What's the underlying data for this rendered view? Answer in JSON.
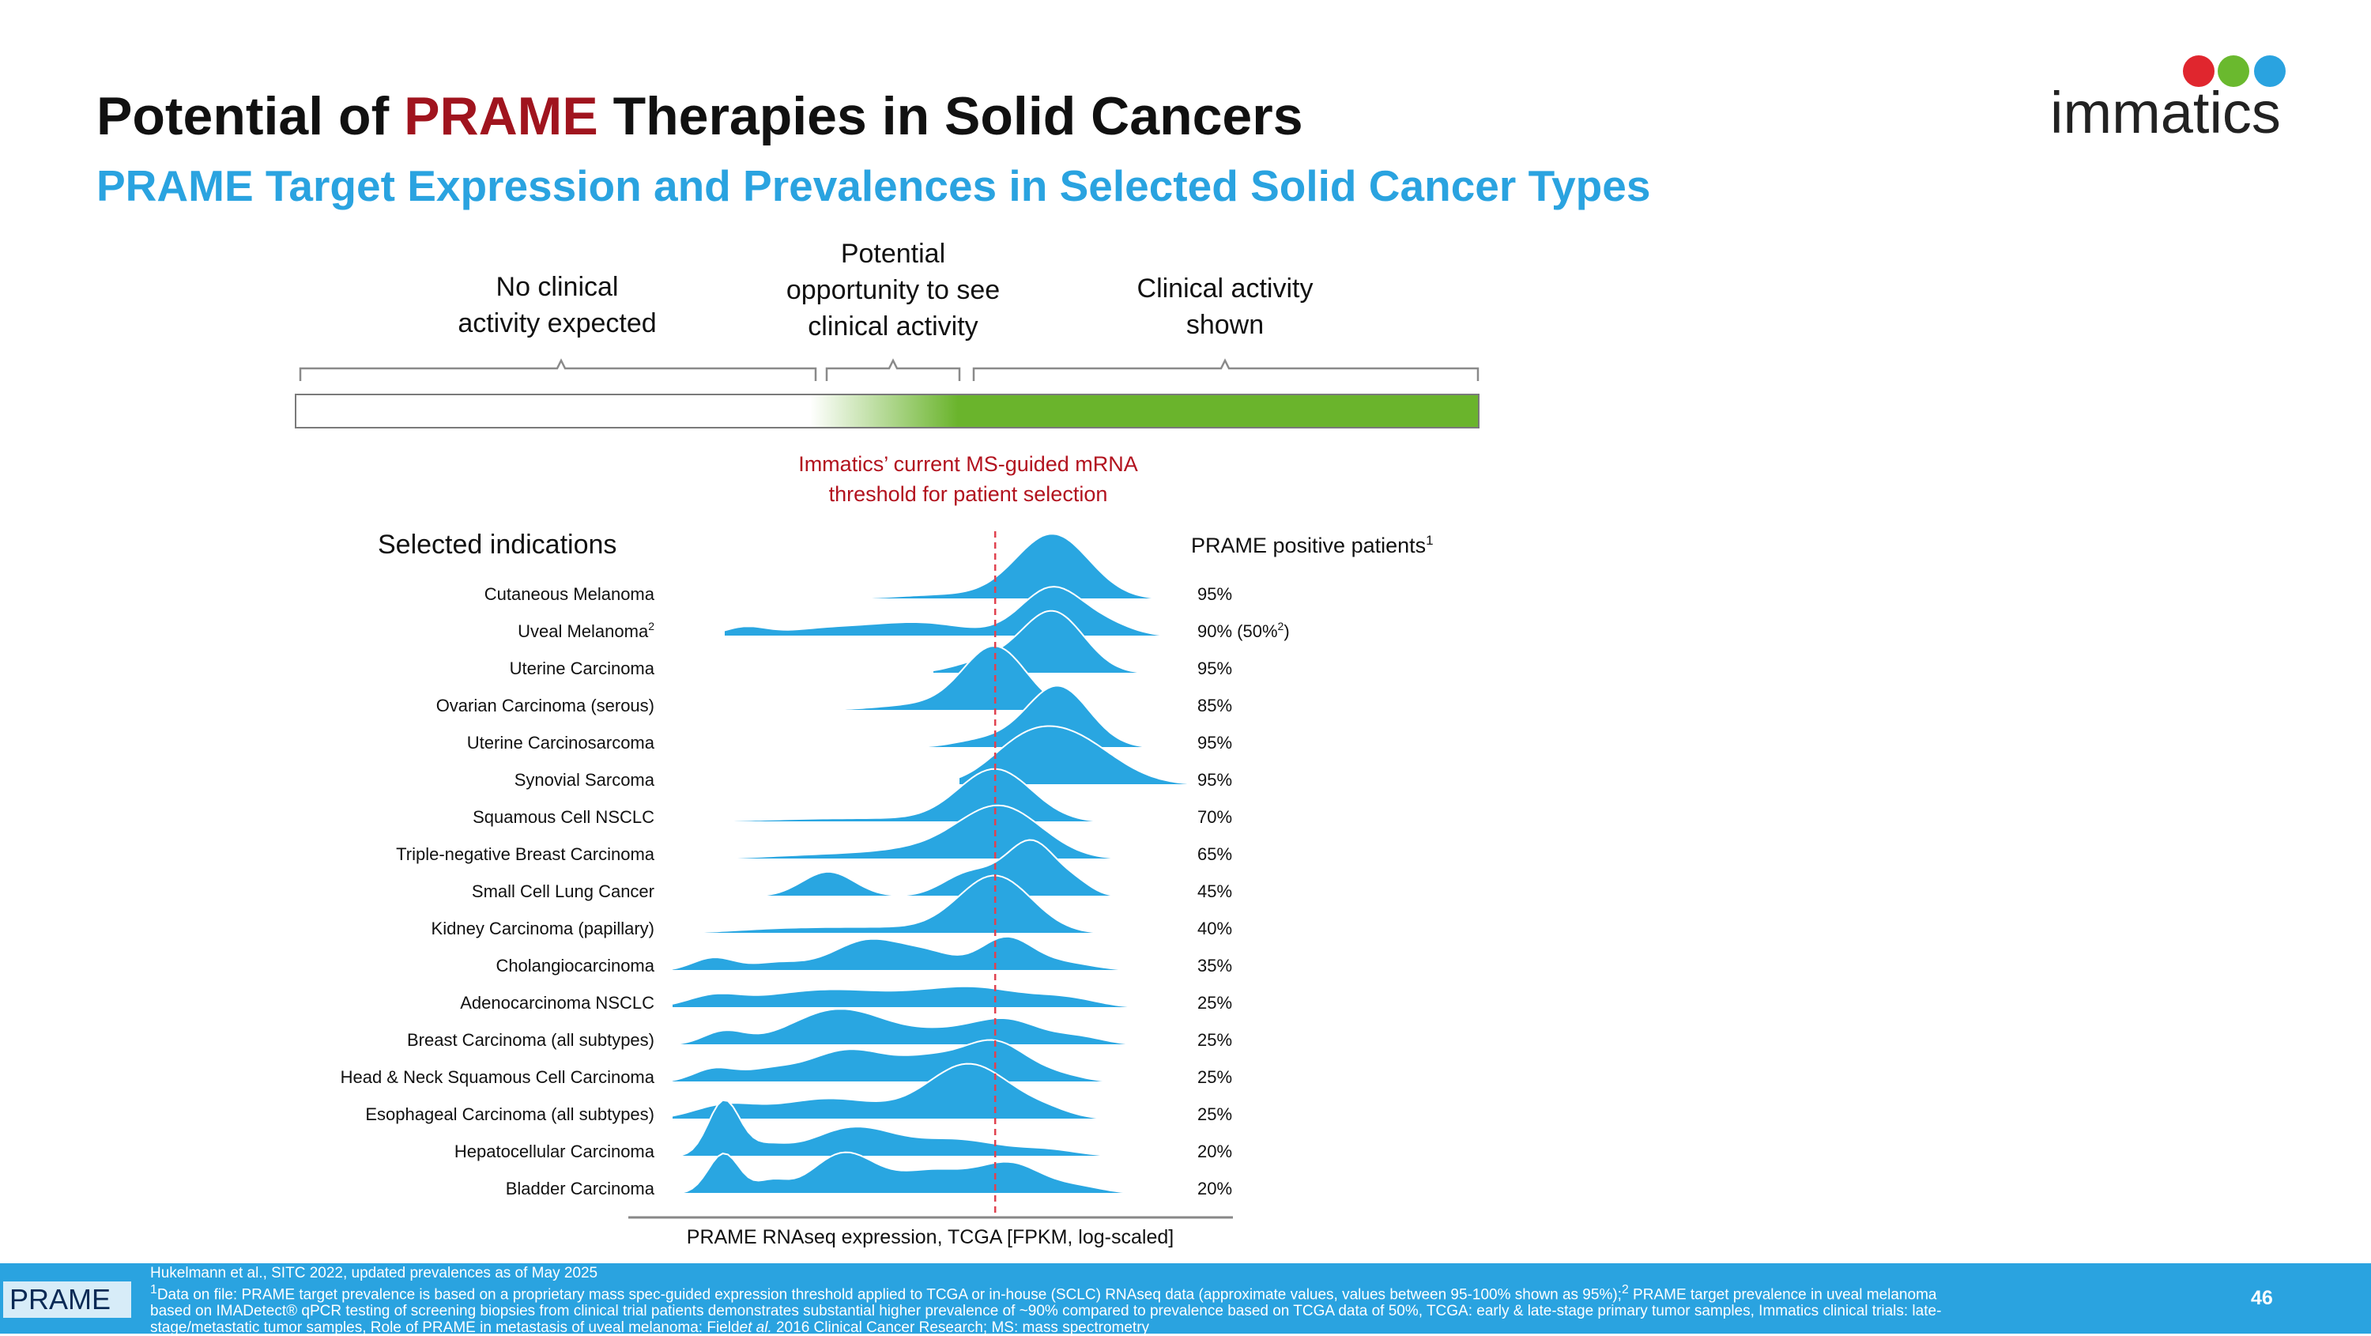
{
  "header": {
    "title_prefix": "Potential of ",
    "title_accent": "PRAME",
    "title_suffix": " Therapies in Solid Cancers",
    "subtitle": "PRAME Target Expression and Prevalences in Selected Solid Cancer Types",
    "logo_text": "immatics",
    "accent_color": "#a0141e",
    "subtitle_color": "#2aa3e0"
  },
  "zones": {
    "no_activity_line1": "No clinical",
    "no_activity_line2": "activity expected",
    "potential_line1": "Potential",
    "potential_line2": "opportunity to see",
    "potential_line3": "clinical activity",
    "shown_line1": "Clinical activity",
    "shown_line2": "shown"
  },
  "threshold_note": {
    "line1": "Immatics’ current MS-guided mRNA",
    "line2": "threshold for patient selection"
  },
  "chart_data": {
    "type": "ridgeline",
    "title": "PRAME Target Expression and Prevalences in Selected Solid Cancer Types",
    "xlabel": "PRAME RNAseq expression, TCGA [FPKM, log-scaled]",
    "ylabel": "Selected indications",
    "right_column_label": "PRAME positive patients",
    "right_column_sup": "1",
    "x_range": [
      0,
      100
    ],
    "threshold_x": 62,
    "series_color": "#29a6e1",
    "threshold_color": "#e0424f",
    "series": [
      {
        "name": "Cutaneous Melanoma",
        "sup": "",
        "positive": "95%",
        "start": 35,
        "end": 95,
        "bumps": [
          [
            53,
            10,
            0.07
          ],
          [
            73,
            7,
            1.0
          ]
        ]
      },
      {
        "name": "Uveal Melanoma",
        "sup": "2",
        "positive": "90% (50%",
        "positive_sup": "2",
        "positive_suffix": ")",
        "start": 10,
        "end": 95,
        "bumps": [
          [
            14,
            4,
            0.13
          ],
          [
            30,
            9,
            0.12
          ],
          [
            48,
            9,
            0.2
          ],
          [
            73,
            6,
            0.75
          ],
          [
            84,
            5,
            0.14
          ]
        ]
      },
      {
        "name": "Uterine Carcinoma",
        "sup": "",
        "positive": "95%",
        "start": 50,
        "end": 95,
        "bumps": [
          [
            60,
            6,
            0.18
          ],
          [
            73,
            6,
            0.95
          ]
        ]
      },
      {
        "name": "Ovarian Carcinoma (serous)",
        "sup": "",
        "positive": "85%",
        "start": 25,
        "end": 90,
        "bumps": [
          [
            50,
            10,
            0.1
          ],
          [
            62,
            6,
            0.95
          ]
        ]
      },
      {
        "name": "Uterine Carcinosarcoma",
        "sup": "",
        "positive": "95%",
        "start": 48,
        "end": 95,
        "bumps": [
          [
            60,
            6,
            0.12
          ],
          [
            74,
            6,
            0.95
          ]
        ]
      },
      {
        "name": "Synovial Sarcoma",
        "sup": "",
        "positive": "95%",
        "start": 55,
        "end": 100,
        "bumps": [
          [
            66,
            6,
            0.25
          ],
          [
            75,
            9,
            0.8
          ]
        ]
      },
      {
        "name": "Squamous Cell NSCLC",
        "sup": "",
        "positive": "70%",
        "start": 5,
        "end": 88,
        "bumps": [
          [
            36,
            18,
            0.06
          ],
          [
            62,
            7,
            0.8
          ]
        ]
      },
      {
        "name": "Triple-negative Breast Carcinoma",
        "sup": "",
        "positive": "65%",
        "start": 5,
        "end": 90,
        "bumps": [
          [
            30,
            12,
            0.07
          ],
          [
            48,
            9,
            0.12
          ],
          [
            63,
            8,
            0.8
          ]
        ]
      },
      {
        "name": "Small Cell Lung Cancer",
        "sup": "",
        "positive": "45%",
        "start": 15,
        "end": 88,
        "bumps": [
          [
            30,
            5,
            0.38
          ],
          [
            57,
            5,
            0.35
          ],
          [
            69,
            5,
            0.85
          ],
          [
            78,
            3,
            0.12
          ]
        ]
      },
      {
        "name": "Kidney Carcinoma (papillary)",
        "sup": "",
        "positive": "40%",
        "start": 3,
        "end": 88,
        "bumps": [
          [
            20,
            10,
            0.06
          ],
          [
            40,
            12,
            0.09
          ],
          [
            62,
            7,
            0.88
          ]
        ]
      },
      {
        "name": "Cholangiocarcinoma",
        "sup": "",
        "positive": "35%",
        "start": 0,
        "end": 88,
        "bumps": [
          [
            8,
            4,
            0.2
          ],
          [
            20,
            5,
            0.12
          ],
          [
            38,
            7,
            0.48
          ],
          [
            50,
            5,
            0.2
          ],
          [
            64,
            5,
            0.5
          ],
          [
            75,
            6,
            0.12
          ]
        ]
      },
      {
        "name": "Adenocarcinoma NSCLC",
        "sup": "",
        "positive": "25%",
        "start": 0,
        "end": 88,
        "bumps": [
          [
            8,
            5,
            0.15
          ],
          [
            30,
            13,
            0.28
          ],
          [
            58,
            10,
            0.3
          ],
          [
            76,
            6,
            0.12
          ]
        ]
      },
      {
        "name": "Breast Carcinoma (all subtypes)",
        "sup": "",
        "positive": "25%",
        "start": 0,
        "end": 88,
        "bumps": [
          [
            10,
            4,
            0.2
          ],
          [
            32,
            9,
            0.55
          ],
          [
            55,
            9,
            0.22
          ],
          [
            65,
            6,
            0.28
          ],
          [
            78,
            5,
            0.12
          ]
        ]
      },
      {
        "name": "Head & Neck Squamous Cell Carcinoma",
        "sup": "",
        "positive": "25%",
        "start": 0,
        "end": 85,
        "bumps": [
          [
            8,
            4,
            0.2
          ],
          [
            18,
            5,
            0.15
          ],
          [
            34,
            8,
            0.5
          ],
          [
            50,
            6,
            0.3
          ],
          [
            62,
            6,
            0.6
          ],
          [
            74,
            5,
            0.1
          ]
        ]
      },
      {
        "name": "Esophageal Carcinoma (all subtypes)",
        "sup": "",
        "positive": "25%",
        "start": 0,
        "end": 82,
        "bumps": [
          [
            10,
            6,
            0.2
          ],
          [
            30,
            10,
            0.32
          ],
          [
            57,
            8,
            0.85
          ],
          [
            72,
            5,
            0.1
          ]
        ]
      },
      {
        "name": "Hepatocellular Carcinoma",
        "sup": "",
        "positive": "20%",
        "start": 0,
        "end": 88,
        "bumps": [
          [
            10,
            3,
            0.85
          ],
          [
            18,
            4,
            0.15
          ],
          [
            35,
            8,
            0.45
          ],
          [
            55,
            8,
            0.25
          ],
          [
            72,
            6,
            0.1
          ]
        ]
      },
      {
        "name": "Bladder Carcinoma",
        "sup": "",
        "positive": "20%",
        "start": 0,
        "end": 88,
        "bumps": [
          [
            10,
            3,
            0.62
          ],
          [
            19,
            3,
            0.18
          ],
          [
            33,
            6,
            0.62
          ],
          [
            50,
            7,
            0.35
          ],
          [
            65,
            6,
            0.45
          ],
          [
            78,
            5,
            0.1
          ]
        ]
      }
    ]
  },
  "footer": {
    "tag": "PRAME",
    "reference": "Hukelmann et al., SITC 2022, updated prevalences as of May 2025",
    "note1_sup": "1",
    "note1": "Data on file: PRAME target prevalence is based on a proprietary mass spec-guided expression threshold applied to TCGA or in-house (SCLC) RNAseq data (approximate values, values between 95-100% shown as 95%);",
    "note2_sup": "2",
    "note2": "PRAME target prevalence in uveal melanoma based on IMADetect® qPCR testing of screening biopsies from clinical trial patients demonstrates substantial higher prevalence of ~90% compared to prevalence based on TCGA data of 50%, TCGA: early & late-stage primary tumor samples, Immatics clinical trials: late-stage/metastatic tumor samples, Role of PRAME in metastasis of uveal melanoma: Field",
    "note_italic": "et al.",
    "note_tail": " 2016 Clinical Cancer Research; MS: mass spectrometry",
    "page_number": "46"
  }
}
